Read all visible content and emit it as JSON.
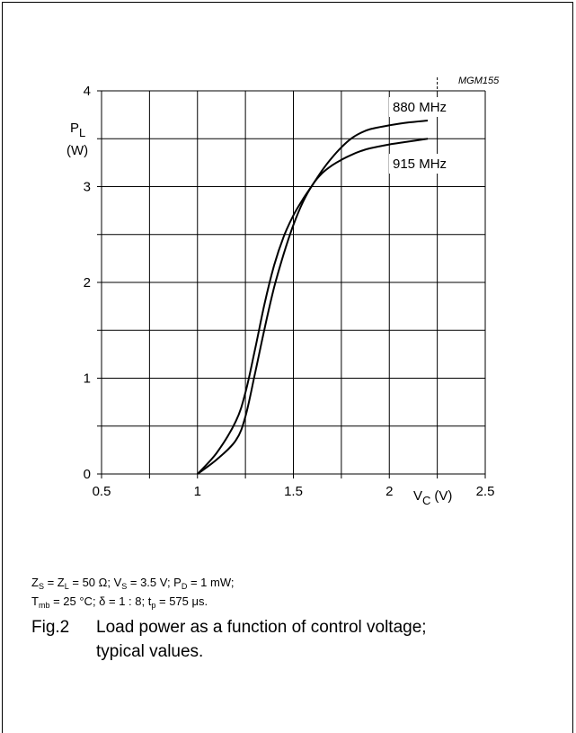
{
  "chart_data": {
    "type": "line",
    "code": "MGM155",
    "ylabel": {
      "main": "P",
      "sub": "L",
      "unit": "(W)"
    },
    "xlabel": {
      "main": "V",
      "sub": "C",
      "unit": "(V)"
    },
    "xlim": [
      0.5,
      2.5
    ],
    "ylim": [
      0,
      4
    ],
    "xticks": [
      "0.5",
      "1",
      "1.5",
      "2",
      "2.5"
    ],
    "yticks": [
      "0",
      "1",
      "2",
      "3",
      "4"
    ],
    "grid": true,
    "series": [
      {
        "name": "880 MHz",
        "x": [
          1.0,
          1.1,
          1.2,
          1.25,
          1.3,
          1.35,
          1.4,
          1.45,
          1.5,
          1.55,
          1.6,
          1.65,
          1.7,
          1.75,
          1.8,
          1.85,
          1.9,
          2.0,
          2.1,
          2.2
        ],
        "y": [
          0,
          0.22,
          0.55,
          0.85,
          1.3,
          1.78,
          2.18,
          2.48,
          2.7,
          2.87,
          3.02,
          3.17,
          3.3,
          3.41,
          3.5,
          3.56,
          3.6,
          3.64,
          3.67,
          3.69
        ]
      },
      {
        "name": "915 MHz",
        "x": [
          1.0,
          1.1,
          1.2,
          1.25,
          1.3,
          1.35,
          1.4,
          1.45,
          1.5,
          1.55,
          1.6,
          1.65,
          1.7,
          1.75,
          1.8,
          1.85,
          1.9,
          2.0,
          2.1,
          2.2
        ],
        "y": [
          0,
          0.15,
          0.35,
          0.6,
          1.05,
          1.52,
          1.95,
          2.3,
          2.6,
          2.84,
          3.02,
          3.14,
          3.22,
          3.28,
          3.33,
          3.37,
          3.4,
          3.44,
          3.47,
          3.5
        ]
      }
    ]
  },
  "conditions": {
    "line1": [
      "Z",
      "S",
      " = Z",
      "L",
      " = 50 Ω; V",
      "S",
      " = 3.5 V; P",
      "D",
      " = 1 mW;"
    ],
    "line2": [
      "T",
      "mb",
      " = 25 °C; δ = 1 : 8; t",
      "p",
      " = 575 μs."
    ]
  },
  "caption": {
    "number": "Fig.2",
    "line1": "Load power as a function of control voltage;",
    "line2": "typical values."
  }
}
